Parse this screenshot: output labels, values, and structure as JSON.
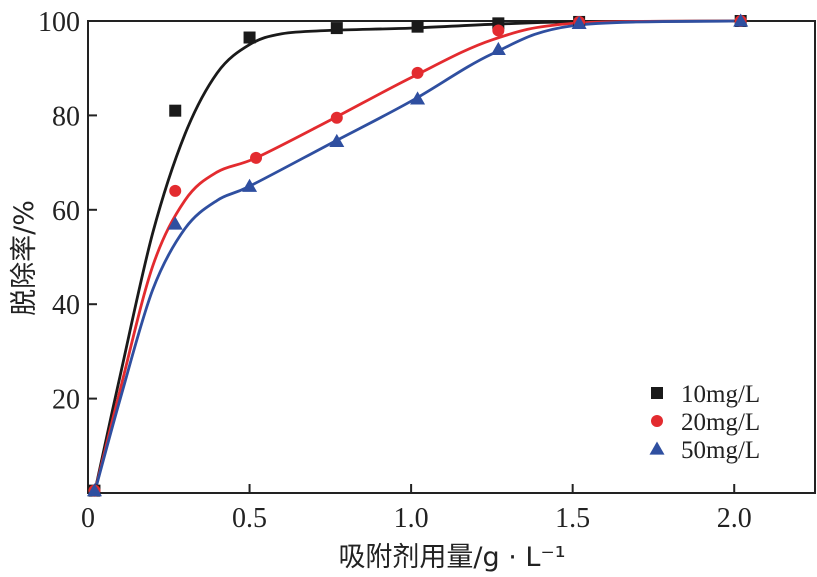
{
  "chart_data": {
    "type": "scatter",
    "xlabel": "吸附剂用量/g · L⁻¹",
    "ylabel": "脱除率/%",
    "xlim": [
      0,
      2.25
    ],
    "ylim": [
      0,
      100
    ],
    "x_ticks": [
      {
        "value": 0,
        "label": "0"
      },
      {
        "value": 0.5,
        "label": "0.5"
      },
      {
        "value": 1.0,
        "label": "1.0"
      },
      {
        "value": 1.5,
        "label": "1.5"
      },
      {
        "value": 2.0,
        "label": "2.0"
      }
    ],
    "y_ticks": [
      {
        "value": 20,
        "label": "20"
      },
      {
        "value": 40,
        "label": "40"
      },
      {
        "value": 60,
        "label": "60"
      },
      {
        "value": 80,
        "label": "80"
      },
      {
        "value": 100,
        "label": "100"
      }
    ],
    "grid": false,
    "legend_position": "bottom-right",
    "series": [
      {
        "name": "10mg/L",
        "marker": "square",
        "color": "#1a1a1a",
        "points": [
          [
            0.02,
            0.5
          ],
          [
            0.27,
            81
          ],
          [
            0.5,
            96.5
          ],
          [
            0.77,
            98.5
          ],
          [
            1.02,
            98.8
          ],
          [
            1.27,
            99.5
          ],
          [
            1.52,
            99.8
          ],
          [
            2.02,
            100
          ]
        ],
        "fit": [
          [
            0.02,
            0
          ],
          [
            0.1,
            25
          ],
          [
            0.2,
            55
          ],
          [
            0.3,
            76
          ],
          [
            0.4,
            89
          ],
          [
            0.5,
            95
          ],
          [
            0.6,
            97.3
          ],
          [
            0.75,
            98
          ],
          [
            1.0,
            98.5
          ],
          [
            1.25,
            99.3
          ],
          [
            1.5,
            99.8
          ],
          [
            2.0,
            100
          ]
        ]
      },
      {
        "name": "20mg/L",
        "marker": "circle",
        "color": "#e32b2f",
        "points": [
          [
            0.02,
            0.5
          ],
          [
            0.27,
            64
          ],
          [
            0.52,
            71
          ],
          [
            0.77,
            79.5
          ],
          [
            1.02,
            89
          ],
          [
            1.27,
            98
          ],
          [
            1.52,
            99.8
          ],
          [
            2.02,
            100
          ]
        ],
        "fit": [
          [
            0.02,
            0
          ],
          [
            0.1,
            22
          ],
          [
            0.2,
            48
          ],
          [
            0.3,
            62
          ],
          [
            0.4,
            68
          ],
          [
            0.52,
            71
          ],
          [
            0.75,
            79
          ],
          [
            1.0,
            88
          ],
          [
            1.25,
            96
          ],
          [
            1.5,
            99.5
          ],
          [
            2.0,
            100
          ]
        ]
      },
      {
        "name": "50mg/L",
        "marker": "triangle",
        "color": "#2f4fa0",
        "points": [
          [
            0.02,
            0.5
          ],
          [
            0.27,
            57
          ],
          [
            0.5,
            65
          ],
          [
            0.77,
            74.5
          ],
          [
            1.02,
            83.5
          ],
          [
            1.27,
            94
          ],
          [
            1.52,
            99.5
          ],
          [
            2.02,
            100
          ]
        ],
        "fit": [
          [
            0.02,
            0
          ],
          [
            0.1,
            20
          ],
          [
            0.2,
            43
          ],
          [
            0.3,
            56
          ],
          [
            0.4,
            62
          ],
          [
            0.5,
            65
          ],
          [
            0.75,
            74
          ],
          [
            1.0,
            83
          ],
          [
            1.25,
            93
          ],
          [
            1.5,
            99
          ],
          [
            2.0,
            100
          ]
        ]
      }
    ]
  }
}
